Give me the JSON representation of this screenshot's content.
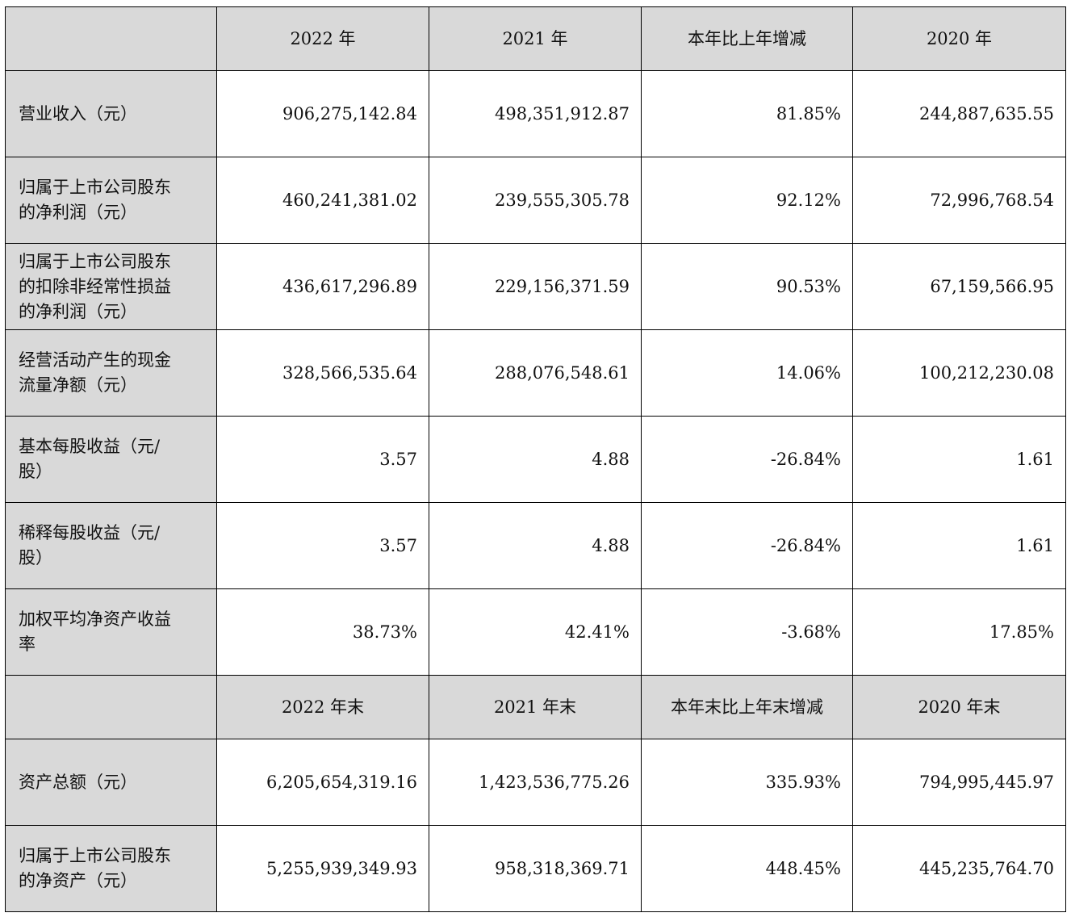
{
  "header1": {
    "col1": "2022 年",
    "col2": "2021 年",
    "col3": "本年比上年增减",
    "col4": "2020 年"
  },
  "rows1": [
    {
      "label_l1": "营业收入（元）",
      "label_l2": "",
      "label_l3": "",
      "v2022": "906,275,142.84",
      "v2021": "498,351,912.87",
      "change": "81.85%",
      "v2020": "244,887,635.55"
    },
    {
      "label_l1": "归属于上市公司股东",
      "label_l2": "的净利润（元）",
      "label_l3": "",
      "v2022": "460,241,381.02",
      "v2021": "239,555,305.78",
      "change": "92.12%",
      "v2020": "72,996,768.54"
    },
    {
      "label_l1": "归属于上市公司股东",
      "label_l2": "的扣除非经常性损益",
      "label_l3": "的净利润（元）",
      "v2022": "436,617,296.89",
      "v2021": "229,156,371.59",
      "change": "90.53%",
      "v2020": "67,159,566.95"
    },
    {
      "label_l1": "经营活动产生的现金",
      "label_l2": "流量净额（元）",
      "label_l3": "",
      "v2022": "328,566,535.64",
      "v2021": "288,076,548.61",
      "change": "14.06%",
      "v2020": "100,212,230.08"
    },
    {
      "label_l1": "基本每股收益（元/",
      "label_l2": "股）",
      "label_l3": "",
      "v2022": "3.57",
      "v2021": "4.88",
      "change": "-26.84%",
      "v2020": "1.61"
    },
    {
      "label_l1": "稀释每股收益（元/",
      "label_l2": "股）",
      "label_l3": "",
      "v2022": "3.57",
      "v2021": "4.88",
      "change": "-26.84%",
      "v2020": "1.61"
    },
    {
      "label_l1": "加权平均净资产收益",
      "label_l2": "率",
      "label_l3": "",
      "v2022": "38.73%",
      "v2021": "42.41%",
      "change": "-3.68%",
      "v2020": "17.85%"
    }
  ],
  "header2": {
    "col1": "2022 年末",
    "col2": "2021 年末",
    "col3": "本年末比上年末增减",
    "col4": "2020 年末"
  },
  "rows2": [
    {
      "label_l1": "资产总额（元）",
      "label_l2": "",
      "label_l3": "",
      "v2022": "6,205,654,319.16",
      "v2021": "1,423,536,775.26",
      "change": "335.93%",
      "v2020": "794,995,445.97"
    },
    {
      "label_l1": "归属于上市公司股东",
      "label_l2": "的净资产（元）",
      "label_l3": "",
      "v2022": "5,255,939,349.93",
      "v2021": "958,318,369.71",
      "change": "448.45%",
      "v2020": "445,235,764.70"
    }
  ]
}
